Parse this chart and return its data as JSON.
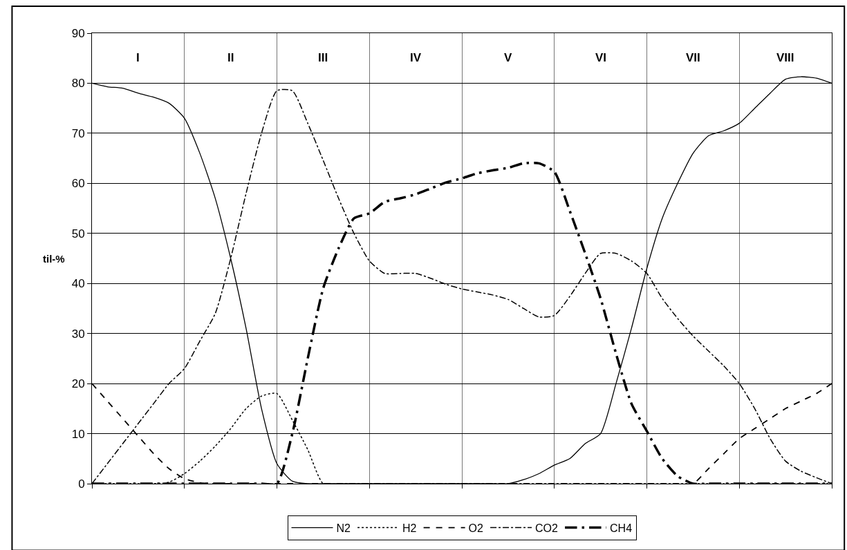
{
  "chart_data": {
    "type": "line",
    "ylabel": "til-%",
    "ylim": [
      0,
      90
    ],
    "yticks": [
      0,
      10,
      20,
      30,
      40,
      50,
      60,
      70,
      80,
      90
    ],
    "grid": true,
    "legend": "bottom",
    "marker": "none",
    "categories": [
      null,
      null,
      null,
      null,
      null,
      null,
      null,
      null,
      null,
      null,
      null,
      null,
      null,
      null,
      null,
      null,
      null,
      null,
      null,
      null,
      null,
      null,
      null,
      null,
      null,
      null,
      null,
      null,
      null,
      null,
      null,
      null,
      null,
      null,
      null,
      null,
      null,
      null,
      null,
      null,
      null,
      null,
      null,
      null,
      null,
      null,
      null,
      null,
      null
    ],
    "annotations": [
      "I",
      "II",
      "III",
      "IV",
      "V",
      "VI",
      "VII",
      "VIII"
    ],
    "series": [
      {
        "name": "N2",
        "color": "#000000",
        "line_style": "solid",
        "values": [
          80,
          79.3,
          79,
          78,
          77.2,
          76,
          73,
          66,
          57,
          45,
          31,
          15,
          4,
          0.5,
          0,
          0,
          0,
          0,
          0,
          0,
          0,
          0,
          0,
          0,
          0,
          0,
          0,
          0,
          0.8,
          2,
          3.7,
          5,
          8,
          10,
          20,
          31,
          43,
          53,
          60,
          66,
          69.5,
          70.5,
          72,
          75,
          78,
          80.8,
          81.3,
          81,
          80
        ]
      },
      {
        "name": "H2",
        "color": "#000000",
        "line_style": "dotted",
        "values": [
          0,
          0,
          0,
          0,
          0,
          0.3,
          2,
          4.5,
          7.5,
          11,
          15,
          17.5,
          18,
          12.7,
          6.8,
          0,
          0,
          0,
          0,
          0,
          0,
          0,
          0,
          0,
          0,
          0,
          0,
          0,
          0,
          0,
          0,
          0,
          0,
          0,
          0,
          0,
          0,
          0,
          0,
          0,
          0,
          0,
          0,
          0,
          0,
          0,
          0,
          0,
          0
        ]
      },
      {
        "name": "O2",
        "color": "#000000",
        "line_style": "dashed",
        "values": [
          20,
          16.5,
          13,
          9.5,
          6,
          3,
          1,
          0.2,
          0,
          0,
          0,
          0,
          0,
          0,
          0,
          0,
          0,
          0,
          0,
          0,
          0,
          0,
          0,
          0,
          0,
          0,
          0,
          0,
          0,
          0,
          0,
          0,
          0,
          0,
          0,
          0,
          0,
          0,
          0,
          0,
          3,
          6,
          9,
          11,
          13,
          15,
          16.5,
          18,
          20
        ]
      },
      {
        "name": "CO2",
        "color": "#000000",
        "line_style": "dashdot",
        "values": [
          0,
          4,
          8,
          12,
          16,
          20,
          23,
          28.5,
          34,
          45,
          58,
          70,
          78.5,
          78.5,
          72,
          64.6,
          57,
          50,
          44.5,
          42,
          42,
          42,
          41,
          39.8,
          38.9,
          38.3,
          37.7,
          36.8,
          35,
          33.3,
          33.6,
          37.4,
          42,
          46,
          46,
          44.5,
          42,
          37,
          33,
          29.5,
          26.5,
          23.5,
          20,
          15,
          9,
          4.5,
          2.5,
          1.2,
          0
        ]
      },
      {
        "name": "CH4",
        "color": "#000000",
        "line_style": "longdashdot",
        "values": [
          0,
          0,
          0,
          0,
          0,
          0,
          0,
          0,
          0,
          0,
          0,
          0,
          0,
          10,
          25,
          39,
          47,
          53,
          54,
          56.3,
          57,
          57.8,
          59,
          60.2,
          61,
          62,
          62.6,
          63.1,
          64,
          64,
          62.3,
          54.5,
          46,
          37,
          26,
          16,
          10.5,
          5,
          1.5,
          0,
          0,
          0,
          0,
          0,
          0,
          0,
          0,
          0,
          0
        ]
      }
    ]
  }
}
